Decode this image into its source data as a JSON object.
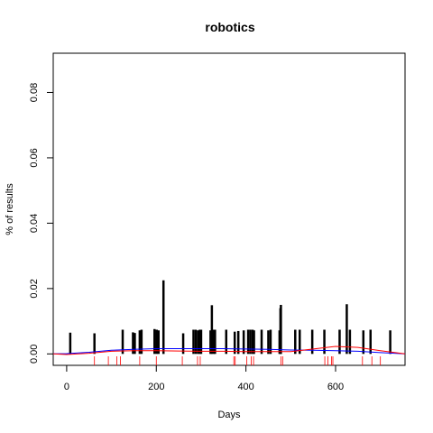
{
  "chart_data": {
    "type": "bar",
    "title": "robotics",
    "xlabel": "Days",
    "ylabel": "% of results",
    "xlim": [
      -30,
      755
    ],
    "ylim": [
      -0.0035,
      0.092
    ],
    "xticks": [
      0,
      200,
      400,
      600
    ],
    "yticks": [
      0.0,
      0.02,
      0.04,
      0.06,
      0.08
    ],
    "ytick_labels": [
      "0.00",
      "0.02",
      "0.04",
      "0.06",
      "0.08"
    ],
    "series": [
      {
        "kind": "spikes",
        "color": "#000000",
        "x": [
          8,
          62,
          125,
          148,
          152,
          163,
          167,
          196,
          201,
          205,
          216,
          260,
          283,
          288,
          293,
          297,
          300,
          321,
          324,
          328,
          331,
          356,
          375,
          383,
          395,
          405,
          410,
          415,
          418,
          435,
          450,
          455,
          475,
          477,
          478,
          510,
          520,
          548,
          575,
          609,
          625,
          632,
          662,
          678,
          722
        ],
        "values": [
          0.0065,
          0.0063,
          0.0074,
          0.0066,
          0.0064,
          0.0072,
          0.0074,
          0.0076,
          0.0074,
          0.0072,
          0.0225,
          0.0063,
          0.0074,
          0.0074,
          0.0072,
          0.0074,
          0.0074,
          0.0072,
          0.0149,
          0.0074,
          0.0074,
          0.0074,
          0.0068,
          0.007,
          0.0072,
          0.0074,
          0.0074,
          0.0074,
          0.0072,
          0.0074,
          0.0072,
          0.0074,
          0.0072,
          0.014,
          0.015,
          0.0074,
          0.0074,
          0.0074,
          0.0074,
          0.0074,
          0.0152,
          0.0074,
          0.0072,
          0.0074,
          0.0072
        ]
      },
      {
        "kind": "smooth",
        "color": "#0000ff",
        "x": [
          -30,
          0,
          50,
          100,
          150,
          200,
          250,
          300,
          350,
          400,
          450,
          500,
          550,
          600,
          650,
          700,
          755
        ],
        "values": [
          0.0,
          0.0001,
          0.0005,
          0.0011,
          0.0014,
          0.0016,
          0.0016,
          0.0016,
          0.0016,
          0.0015,
          0.0014,
          0.0012,
          0.0011,
          0.001,
          0.0008,
          0.0004,
          0.0
        ]
      },
      {
        "kind": "smooth",
        "color": "#ff0000",
        "x": [
          -30,
          0,
          50,
          100,
          150,
          200,
          250,
          300,
          350,
          400,
          450,
          500,
          550,
          600,
          650,
          700,
          755
        ],
        "values": [
          0.0,
          -0.0002,
          0.0002,
          0.0008,
          0.001,
          0.001,
          0.0009,
          0.0008,
          0.0008,
          0.0007,
          0.0007,
          0.0007,
          0.0015,
          0.0023,
          0.002,
          0.001,
          0.0
        ]
      }
    ],
    "rug": {
      "color": "#ff0000",
      "x": [
        62,
        93,
        112,
        120,
        163,
        200,
        258,
        292,
        298,
        373,
        376,
        402,
        412,
        417,
        478,
        482,
        576,
        583,
        591,
        594,
        660,
        681,
        700
      ]
    },
    "grid": false,
    "legend": "none"
  }
}
